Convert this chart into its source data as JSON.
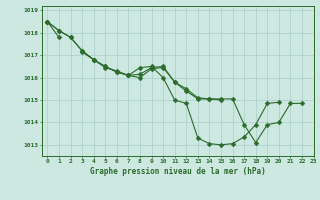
{
  "title": "Graphe pression niveau de la mer (hPa)",
  "background_color": "#cce8e0",
  "grid_color": "#aacccc",
  "line_color": "#2d6b2d",
  "xlim": [
    -0.5,
    23
  ],
  "ylim": [
    1012.5,
    1019.2
  ],
  "yticks": [
    1013,
    1014,
    1015,
    1016,
    1017,
    1018,
    1019
  ],
  "xticks": [
    0,
    1,
    2,
    3,
    4,
    5,
    6,
    7,
    8,
    9,
    10,
    11,
    12,
    13,
    14,
    15,
    16,
    17,
    18,
    19,
    20,
    21,
    22,
    23
  ],
  "s1_y": [
    1018.5,
    1018.1,
    1017.8,
    1017.2,
    1016.8,
    1016.5,
    1016.25,
    1016.1,
    1016.15,
    1016.45,
    1016.5,
    1015.8,
    1015.5,
    1015.1,
    1015.05,
    1015.0,
    null,
    null,
    null,
    null,
    null,
    null,
    null,
    null
  ],
  "s2_y": [
    1018.5,
    1018.1,
    1017.8,
    1017.2,
    1016.8,
    1016.5,
    1016.25,
    1016.1,
    1016.45,
    1016.5,
    1016.0,
    1015.0,
    1014.85,
    1013.3,
    1013.05,
    1013.0,
    1013.05,
    1013.35,
    1013.9,
    1014.85,
    1014.9,
    null,
    null,
    null
  ],
  "s3_y": [
    1018.5,
    1017.8,
    null,
    1017.15,
    1016.8,
    1016.45,
    1016.3,
    1016.1,
    1016.0,
    1016.4,
    1016.45,
    1015.8,
    1015.4,
    1015.05,
    1015.05,
    1015.05,
    1015.05,
    1013.9,
    1013.1,
    1013.9,
    1014.0,
    1014.85,
    1014.85,
    null
  ]
}
